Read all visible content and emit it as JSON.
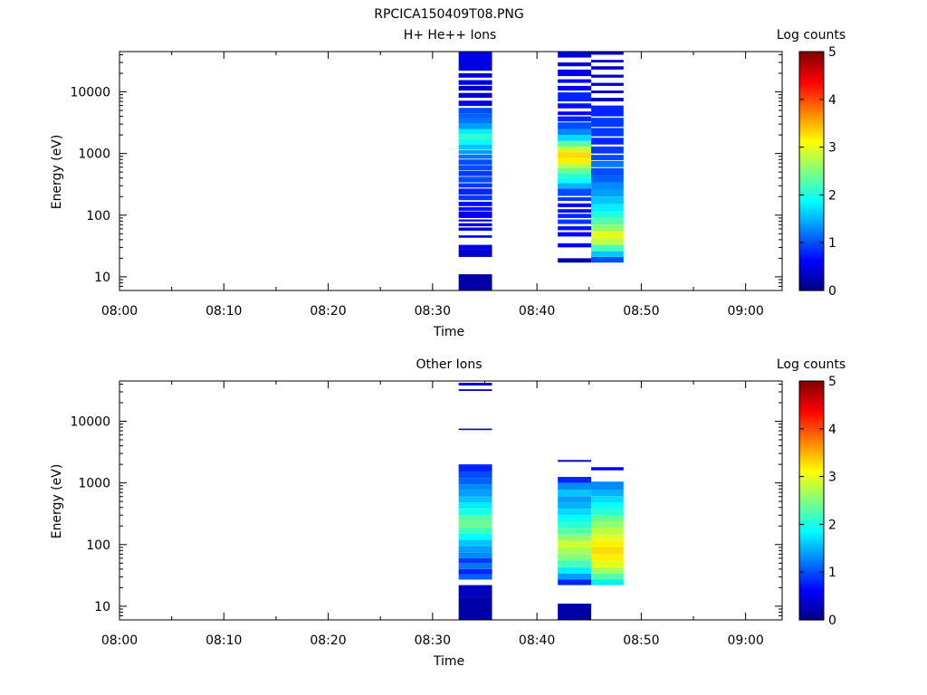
{
  "figure_title": "RPCICA150409T08.PNG",
  "chart_data": [
    {
      "type": "heatmap",
      "title": "H+ He++ Ions",
      "xlabel": "Time",
      "ylabel": "Energy (eV)",
      "x_ticks": [
        "08:00",
        "08:10",
        "08:20",
        "08:30",
        "08:40",
        "08:50",
        "09:00"
      ],
      "x_tick_minutes": [
        0,
        10,
        20,
        30,
        40,
        50,
        60
      ],
      "xlim_minutes": [
        0,
        63.5
      ],
      "y_scale": "log",
      "y_ticks": [
        10,
        100,
        1000,
        10000
      ],
      "y_tick_labels": [
        "10",
        "100",
        "1000",
        "10000"
      ],
      "ylim": [
        6,
        45000
      ],
      "colorbar": {
        "label": "Log counts",
        "min": 0,
        "max": 5,
        "ticks": [
          "0",
          "1",
          "2",
          "3",
          "4",
          "5"
        ],
        "colormap": "jet"
      },
      "columns": [
        {
          "t_start": 32.5,
          "t_end": 35.7,
          "bins": [
            {
              "emin": 6,
              "emax": 11,
              "level": 0.2
            },
            {
              "emin": 21,
              "emax": 28,
              "level": 0.4
            },
            {
              "emin": 28,
              "emax": 33,
              "level": 0.5
            },
            {
              "emin": 43,
              "emax": 47,
              "level": 0.4
            },
            {
              "emin": 56,
              "emax": 63,
              "level": 0.5
            },
            {
              "emin": 66,
              "emax": 74,
              "level": 0.5
            },
            {
              "emin": 79,
              "emax": 85,
              "level": 0.4
            },
            {
              "emin": 90,
              "emax": 115,
              "level": 0.6
            },
            {
              "emin": 118,
              "emax": 135,
              "level": 0.7
            },
            {
              "emin": 140,
              "emax": 165,
              "level": 0.7
            },
            {
              "emin": 175,
              "emax": 210,
              "level": 0.9
            },
            {
              "emin": 215,
              "emax": 270,
              "level": 0.8
            },
            {
              "emin": 280,
              "emax": 330,
              "level": 0.9
            },
            {
              "emin": 340,
              "emax": 420,
              "level": 1.0
            },
            {
              "emin": 430,
              "emax": 520,
              "level": 0.9
            },
            {
              "emin": 530,
              "emax": 650,
              "level": 1.0
            },
            {
              "emin": 660,
              "emax": 800,
              "level": 1.0
            },
            {
              "emin": 820,
              "emax": 960,
              "level": 1.2
            },
            {
              "emin": 980,
              "emax": 1130,
              "level": 1.4
            },
            {
              "emin": 1150,
              "emax": 1400,
              "level": 1.6
            },
            {
              "emin": 1400,
              "emax": 1700,
              "level": 1.9
            },
            {
              "emin": 1700,
              "emax": 2050,
              "level": 2.1
            },
            {
              "emin": 2050,
              "emax": 2500,
              "level": 1.8
            },
            {
              "emin": 2500,
              "emax": 3050,
              "level": 1.4
            },
            {
              "emin": 3050,
              "emax": 3700,
              "level": 1.2
            },
            {
              "emin": 3700,
              "emax": 4500,
              "level": 1.1
            },
            {
              "emin": 4500,
              "emax": 5500,
              "level": 1.0
            },
            {
              "emin": 5900,
              "emax": 7200,
              "level": 0.5
            },
            {
              "emin": 8000,
              "emax": 9600,
              "level": 0.4
            },
            {
              "emin": 10500,
              "emax": 12500,
              "level": 0.4
            },
            {
              "emin": 13000,
              "emax": 15500,
              "level": 0.5
            },
            {
              "emin": 17000,
              "emax": 20000,
              "level": 0.4
            },
            {
              "emin": 22000,
              "emax": 45000,
              "level": 0.5
            }
          ]
        },
        {
          "t_start": 42.0,
          "t_end": 45.2,
          "bins": [
            {
              "emin": 17,
              "emax": 20,
              "level": 0.2
            },
            {
              "emin": 30,
              "emax": 35,
              "level": 0.6
            },
            {
              "emin": 45,
              "emax": 53,
              "level": 0.6
            },
            {
              "emin": 57,
              "emax": 66,
              "level": 0.7
            },
            {
              "emin": 72,
              "emax": 85,
              "level": 0.9
            },
            {
              "emin": 90,
              "emax": 105,
              "level": 0.8
            },
            {
              "emin": 110,
              "emax": 125,
              "level": 0.7
            },
            {
              "emin": 135,
              "emax": 155,
              "level": 0.6
            },
            {
              "emin": 170,
              "emax": 195,
              "level": 0.9
            },
            {
              "emin": 205,
              "emax": 270,
              "level": 1.0
            },
            {
              "emin": 270,
              "emax": 330,
              "level": 1.5
            },
            {
              "emin": 330,
              "emax": 400,
              "level": 1.9
            },
            {
              "emin": 400,
              "emax": 480,
              "level": 2.1
            },
            {
              "emin": 480,
              "emax": 580,
              "level": 2.4
            },
            {
              "emin": 580,
              "emax": 700,
              "level": 2.8
            },
            {
              "emin": 700,
              "emax": 850,
              "level": 3.2
            },
            {
              "emin": 850,
              "emax": 1050,
              "level": 3.3
            },
            {
              "emin": 1050,
              "emax": 1300,
              "level": 2.9
            },
            {
              "emin": 1300,
              "emax": 1600,
              "level": 2.3
            },
            {
              "emin": 1600,
              "emax": 2000,
              "level": 1.7
            },
            {
              "emin": 2000,
              "emax": 2500,
              "level": 1.3
            },
            {
              "emin": 2500,
              "emax": 3200,
              "level": 1.0
            },
            {
              "emin": 3300,
              "emax": 4000,
              "level": 0.8
            },
            {
              "emin": 4200,
              "emax": 4800,
              "level": 0.6
            },
            {
              "emin": 5400,
              "emax": 6500,
              "level": 0.7
            },
            {
              "emin": 7000,
              "emax": 9800,
              "level": 0.8
            },
            {
              "emin": 10500,
              "emax": 12500,
              "level": 0.6
            },
            {
              "emin": 14000,
              "emax": 16000,
              "level": 0.6
            },
            {
              "emin": 18000,
              "emax": 23000,
              "level": 0.5
            },
            {
              "emin": 26000,
              "emax": 30000,
              "level": 0.5
            },
            {
              "emin": 36000,
              "emax": 45000,
              "level": 0.5
            }
          ]
        },
        {
          "t_start": 45.2,
          "t_end": 48.3,
          "bins": [
            {
              "emin": 17,
              "emax": 21,
              "level": 1.0
            },
            {
              "emin": 21,
              "emax": 26,
              "level": 1.6
            },
            {
              "emin": 26,
              "emax": 33,
              "level": 2.2
            },
            {
              "emin": 33,
              "emax": 42,
              "level": 2.8
            },
            {
              "emin": 42,
              "emax": 55,
              "level": 3.0
            },
            {
              "emin": 55,
              "emax": 70,
              "level": 2.6
            },
            {
              "emin": 70,
              "emax": 90,
              "level": 2.3
            },
            {
              "emin": 90,
              "emax": 115,
              "level": 2.0
            },
            {
              "emin": 115,
              "emax": 150,
              "level": 1.8
            },
            {
              "emin": 150,
              "emax": 200,
              "level": 1.6
            },
            {
              "emin": 200,
              "emax": 260,
              "level": 1.4
            },
            {
              "emin": 260,
              "emax": 340,
              "level": 1.3
            },
            {
              "emin": 340,
              "emax": 440,
              "level": 1.1
            },
            {
              "emin": 440,
              "emax": 580,
              "level": 1.0
            },
            {
              "emin": 600,
              "emax": 760,
              "level": 1.2
            },
            {
              "emin": 780,
              "emax": 950,
              "level": 1.0
            },
            {
              "emin": 1000,
              "emax": 1300,
              "level": 0.9
            },
            {
              "emin": 1400,
              "emax": 1800,
              "level": 0.8
            },
            {
              "emin": 1900,
              "emax": 2600,
              "level": 0.9
            },
            {
              "emin": 2700,
              "emax": 3800,
              "level": 0.9
            },
            {
              "emin": 4000,
              "emax": 6000,
              "level": 0.8
            },
            {
              "emin": 7000,
              "emax": 8000,
              "level": 0.4
            },
            {
              "emin": 9500,
              "emax": 10500,
              "level": 0.4
            },
            {
              "emin": 12500,
              "emax": 14000,
              "level": 0.4
            },
            {
              "emin": 17000,
              "emax": 19000,
              "level": 0.4
            },
            {
              "emin": 23000,
              "emax": 26000,
              "level": 0.4
            },
            {
              "emin": 30000,
              "emax": 33000,
              "level": 0.4
            },
            {
              "emin": 40000,
              "emax": 45000,
              "level": 0.4
            }
          ]
        }
      ]
    },
    {
      "type": "heatmap",
      "title": "Other Ions",
      "xlabel": "Time",
      "ylabel": "Energy (eV)",
      "x_ticks": [
        "08:00",
        "08:10",
        "08:20",
        "08:30",
        "08:40",
        "08:50",
        "09:00"
      ],
      "x_tick_minutes": [
        0,
        10,
        20,
        30,
        40,
        50,
        60
      ],
      "xlim_minutes": [
        0,
        63.5
      ],
      "y_scale": "log",
      "y_ticks": [
        10,
        100,
        1000,
        10000
      ],
      "y_tick_labels": [
        "10",
        "100",
        "1000",
        "10000"
      ],
      "ylim": [
        6,
        45000
      ],
      "colorbar": {
        "label": "Log counts",
        "min": 0,
        "max": 5,
        "ticks": [
          "0",
          "1",
          "2",
          "3",
          "4",
          "5"
        ],
        "colormap": "jet"
      },
      "columns": [
        {
          "t_start": 32.5,
          "t_end": 35.7,
          "bins": [
            {
              "emin": 6,
              "emax": 14,
              "level": 0.2
            },
            {
              "emin": 14,
              "emax": 22,
              "level": 0.3
            },
            {
              "emin": 27,
              "emax": 33,
              "level": 1.1
            },
            {
              "emin": 33,
              "emax": 40,
              "level": 0.8
            },
            {
              "emin": 40,
              "emax": 50,
              "level": 1.2
            },
            {
              "emin": 50,
              "emax": 60,
              "level": 0.9
            },
            {
              "emin": 60,
              "emax": 75,
              "level": 1.3
            },
            {
              "emin": 75,
              "emax": 95,
              "level": 1.4
            },
            {
              "emin": 95,
              "emax": 120,
              "level": 1.6
            },
            {
              "emin": 120,
              "emax": 150,
              "level": 1.9
            },
            {
              "emin": 150,
              "emax": 190,
              "level": 2.2
            },
            {
              "emin": 190,
              "emax": 240,
              "level": 2.4
            },
            {
              "emin": 240,
              "emax": 300,
              "level": 2.3
            },
            {
              "emin": 300,
              "emax": 380,
              "level": 2.0
            },
            {
              "emin": 380,
              "emax": 480,
              "level": 1.8
            },
            {
              "emin": 480,
              "emax": 600,
              "level": 1.6
            },
            {
              "emin": 600,
              "emax": 760,
              "level": 1.4
            },
            {
              "emin": 760,
              "emax": 950,
              "level": 1.3
            },
            {
              "emin": 950,
              "emax": 1200,
              "level": 1.1
            },
            {
              "emin": 1200,
              "emax": 1500,
              "level": 1.0
            },
            {
              "emin": 1500,
              "emax": 2000,
              "level": 0.8
            },
            {
              "emin": 7200,
              "emax": 7600,
              "level": 0.3
            },
            {
              "emin": 31000,
              "emax": 33000,
              "level": 0.4
            },
            {
              "emin": 38000,
              "emax": 42000,
              "level": 0.4
            }
          ]
        },
        {
          "t_start": 42.0,
          "t_end": 45.2,
          "bins": [
            {
              "emin": 6,
              "emax": 11,
              "level": 0.2
            },
            {
              "emin": 22,
              "emax": 27,
              "level": 0.8
            },
            {
              "emin": 27,
              "emax": 34,
              "level": 1.4
            },
            {
              "emin": 34,
              "emax": 43,
              "level": 1.8
            },
            {
              "emin": 43,
              "emax": 55,
              "level": 2.2
            },
            {
              "emin": 55,
              "emax": 70,
              "level": 2.5
            },
            {
              "emin": 70,
              "emax": 90,
              "level": 2.7
            },
            {
              "emin": 90,
              "emax": 115,
              "level": 2.9
            },
            {
              "emin": 115,
              "emax": 145,
              "level": 2.6
            },
            {
              "emin": 145,
              "emax": 185,
              "level": 2.3
            },
            {
              "emin": 185,
              "emax": 235,
              "level": 2.1
            },
            {
              "emin": 235,
              "emax": 300,
              "level": 1.9
            },
            {
              "emin": 300,
              "emax": 380,
              "level": 1.7
            },
            {
              "emin": 380,
              "emax": 480,
              "level": 1.5
            },
            {
              "emin": 480,
              "emax": 610,
              "level": 1.4
            },
            {
              "emin": 610,
              "emax": 780,
              "level": 1.6
            },
            {
              "emin": 780,
              "emax": 1000,
              "level": 1.3
            },
            {
              "emin": 1000,
              "emax": 1250,
              "level": 0.8
            },
            {
              "emin": 2200,
              "emax": 2350,
              "level": 0.3
            }
          ]
        },
        {
          "t_start": 45.2,
          "t_end": 48.3,
          "bins": [
            {
              "emin": 22,
              "emax": 27,
              "level": 1.8
            },
            {
              "emin": 27,
              "emax": 34,
              "level": 2.3
            },
            {
              "emin": 34,
              "emax": 43,
              "level": 2.7
            },
            {
              "emin": 43,
              "emax": 55,
              "level": 3.0
            },
            {
              "emin": 55,
              "emax": 70,
              "level": 3.2
            },
            {
              "emin": 70,
              "emax": 90,
              "level": 3.3
            },
            {
              "emin": 90,
              "emax": 115,
              "level": 3.2
            },
            {
              "emin": 115,
              "emax": 145,
              "level": 3.0
            },
            {
              "emin": 145,
              "emax": 185,
              "level": 2.8
            },
            {
              "emin": 185,
              "emax": 235,
              "level": 2.6
            },
            {
              "emin": 235,
              "emax": 300,
              "level": 2.4
            },
            {
              "emin": 300,
              "emax": 380,
              "level": 2.1
            },
            {
              "emin": 380,
              "emax": 480,
              "level": 1.9
            },
            {
              "emin": 480,
              "emax": 610,
              "level": 1.7
            },
            {
              "emin": 610,
              "emax": 780,
              "level": 1.5
            },
            {
              "emin": 780,
              "emax": 1050,
              "level": 1.3
            },
            {
              "emin": 1600,
              "emax": 1800,
              "level": 0.6
            }
          ]
        }
      ]
    }
  ]
}
